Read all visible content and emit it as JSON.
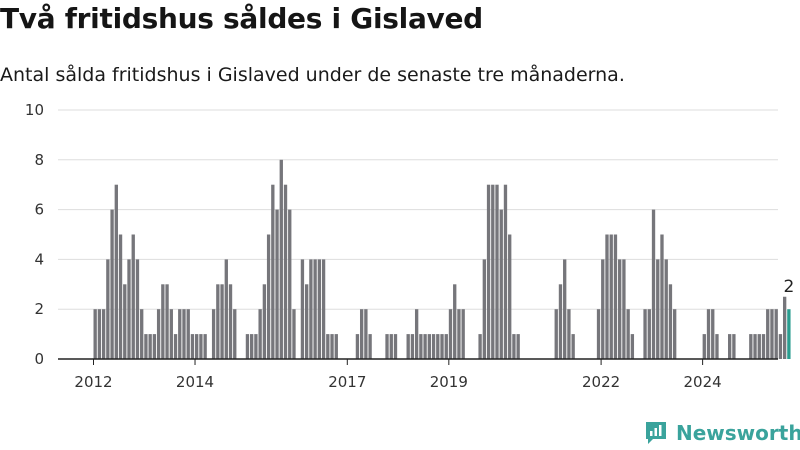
{
  "title": "Två fritidshus såldes i Gislaved",
  "subtitle": "Antal sålda fritidshus i Gislaved under de senaste tre månaderna.",
  "brand": "Newsworthy",
  "colors": {
    "bar": "#76767b",
    "highlight": "#2a9d8f",
    "grid": "#dddddd",
    "brand": "#3aa39c"
  },
  "chart_data": {
    "type": "bar",
    "title": "Två fritidshus såldes i Gislaved",
    "subtitle": "Antal sålda fritidshus i Gislaved under de senaste tre månaderna.",
    "xlabel": "",
    "ylabel": "",
    "ylim": [
      0,
      10
    ],
    "yticks": [
      0,
      2,
      4,
      6,
      8,
      10
    ],
    "grid": true,
    "x_tick_labels": [
      "2012",
      "2014",
      "2017",
      "2019",
      "2022",
      "2024"
    ],
    "x_tick_positions": [
      2012,
      2014,
      2017,
      2019,
      2022,
      2024
    ],
    "start_year": 2012,
    "months_per_bar": 1,
    "values": [
      2,
      2,
      2,
      4,
      6,
      7,
      5,
      3,
      4,
      5,
      4,
      2,
      1,
      1,
      1,
      2,
      3,
      3,
      2,
      1,
      2,
      2,
      2,
      1,
      1,
      1,
      1,
      0,
      2,
      3,
      3,
      4,
      3,
      2,
      0,
      0,
      1,
      1,
      1,
      2,
      3,
      5,
      7,
      6,
      8,
      7,
      6,
      2,
      0,
      4,
      3,
      4,
      4,
      4,
      4,
      1,
      1,
      1,
      0,
      0,
      0,
      0,
      1,
      2,
      2,
      1,
      0,
      0,
      0,
      1,
      1,
      1,
      0,
      0,
      1,
      1,
      2,
      1,
      1,
      1,
      1,
      1,
      1,
      1,
      2,
      3,
      2,
      2,
      0,
      0,
      0,
      1,
      4,
      7,
      7,
      7,
      6,
      7,
      5,
      1,
      1,
      0,
      0,
      0,
      0,
      0,
      0,
      0,
      0,
      2,
      3,
      4,
      2,
      1,
      0,
      0,
      0,
      0,
      0,
      2,
      4,
      5,
      5,
      5,
      4,
      4,
      2,
      1,
      0,
      0,
      2,
      2,
      6,
      4,
      5,
      4,
      3,
      2,
      0,
      0,
      0,
      0,
      0,
      0,
      1,
      2,
      2,
      1,
      0,
      0,
      1,
      1,
      0,
      0,
      0,
      1,
      1,
      1,
      1,
      2,
      2,
      2,
      1,
      2.5,
      2
    ],
    "highlight_last": true,
    "annotation": {
      "text": "2",
      "value": 2
    }
  }
}
